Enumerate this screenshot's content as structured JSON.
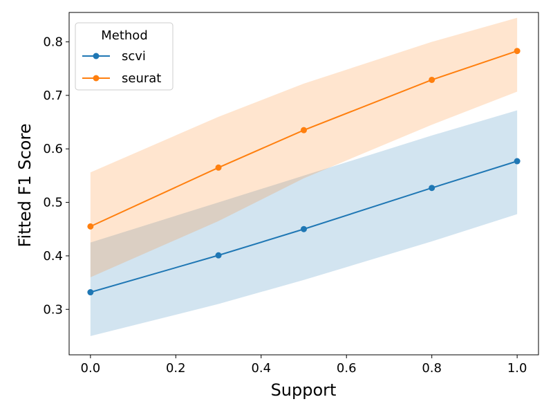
{
  "chart_data": {
    "type": "line",
    "title": "",
    "xlabel": "Support",
    "ylabel": "Fitted F1 Score",
    "xlim": [
      -0.05,
      1.05
    ],
    "ylim": [
      0.215,
      0.855
    ],
    "xticks": [
      0.0,
      0.2,
      0.4,
      0.6,
      0.8,
      1.0
    ],
    "xtick_labels": [
      "0.0",
      "0.2",
      "0.4",
      "0.6",
      "0.8",
      "1.0"
    ],
    "yticks": [
      0.3,
      0.4,
      0.5,
      0.6,
      0.7,
      0.8
    ],
    "ytick_labels": [
      "0.3",
      "0.4",
      "0.5",
      "0.6",
      "0.7",
      "0.8"
    ],
    "grid": false,
    "legend": {
      "title": "Method",
      "placement": "top-left"
    },
    "x": [
      0.0,
      0.3,
      0.5,
      0.8,
      1.0
    ],
    "series": [
      {
        "name": "scvi",
        "color": "#1f77b4",
        "values": [
          0.332,
          0.401,
          0.45,
          0.527,
          0.577
        ],
        "lower": [
          0.25,
          0.31,
          0.355,
          0.427,
          0.478
        ],
        "upper": [
          0.425,
          0.5,
          0.55,
          0.625,
          0.672
        ]
      },
      {
        "name": "seurat",
        "color": "#ff7f0e",
        "values": [
          0.455,
          0.565,
          0.635,
          0.729,
          0.783
        ],
        "lower": [
          0.36,
          0.465,
          0.545,
          0.645,
          0.707
        ],
        "upper": [
          0.556,
          0.66,
          0.722,
          0.8,
          0.845
        ]
      }
    ]
  }
}
